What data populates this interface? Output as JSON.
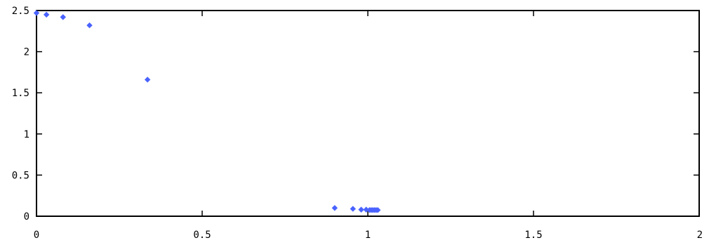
{
  "chart_data": {
    "type": "scatter",
    "title": "",
    "xlabel": "",
    "ylabel": "",
    "xlim": [
      0,
      2
    ],
    "ylim": [
      0,
      2.5
    ],
    "grid": false,
    "x_ticks": [
      {
        "value": 0,
        "label": "0"
      },
      {
        "value": 0.5,
        "label": "0.5"
      },
      {
        "value": 1,
        "label": "1"
      },
      {
        "value": 1.5,
        "label": "1.5"
      },
      {
        "value": 2,
        "label": "2"
      }
    ],
    "y_ticks": [
      {
        "value": 0,
        "label": "0"
      },
      {
        "value": 0.5,
        "label": "0.5"
      },
      {
        "value": 1,
        "label": "1"
      },
      {
        "value": 1.5,
        "label": "1.5"
      },
      {
        "value": 2,
        "label": "2"
      },
      {
        "value": 2.5,
        "label": "2.5"
      }
    ],
    "series": [
      {
        "color": "#4a63ff",
        "marker": "diamond",
        "points": [
          {
            "x": 0.0,
            "y": 2.47
          },
          {
            "x": 0.03,
            "y": 2.45
          },
          {
            "x": 0.08,
            "y": 2.42
          },
          {
            "x": 0.16,
            "y": 2.32
          },
          {
            "x": 0.335,
            "y": 1.66
          },
          {
            "x": 0.9,
            "y": 0.1
          },
          {
            "x": 0.955,
            "y": 0.09
          },
          {
            "x": 0.98,
            "y": 0.08
          },
          {
            "x": 0.995,
            "y": 0.08
          },
          {
            "x": 1.005,
            "y": 0.075
          },
          {
            "x": 1.01,
            "y": 0.075
          },
          {
            "x": 1.015,
            "y": 0.075
          },
          {
            "x": 1.02,
            "y": 0.075
          },
          {
            "x": 1.025,
            "y": 0.075
          },
          {
            "x": 1.03,
            "y": 0.075
          }
        ]
      }
    ]
  }
}
